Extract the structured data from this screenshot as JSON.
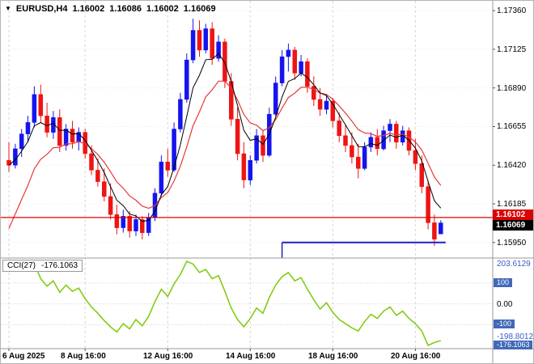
{
  "header": {
    "symbol": "EURUSD,H4",
    "open": "1.16002",
    "high": "1.16086",
    "low": "1.16002",
    "close": "1.16069"
  },
  "colors": {
    "bull": "#1414ee",
    "bear": "#ee1414",
    "ma_fast": "#000000",
    "ma_slow": "#e83838",
    "cci_line": "#84cc14",
    "red_level": "#dd0000",
    "blue_level": "#2020c0",
    "grid": "#d6d6d6",
    "badge_blue": "#4169b8",
    "bid_badge": "#000000"
  },
  "chart_data": [
    {
      "type": "candlestick",
      "title": "EURUSD H4",
      "ylim": [
        1.159,
        1.174
      ],
      "y_ticks": [
        {
          "value": 1.1736,
          "text": "1.17360"
        },
        {
          "value": 1.17125,
          "text": "1.17125"
        },
        {
          "value": 1.1689,
          "text": "1.16890"
        },
        {
          "value": 1.16655,
          "text": "1.16655"
        },
        {
          "value": 1.1642,
          "text": "1.16420"
        },
        {
          "value": 1.16185,
          "text": "1.16185"
        },
        {
          "value": 1.1595,
          "text": "1.15950"
        }
      ],
      "x_labels": [
        {
          "index": 0,
          "text": "6 Aug 2025"
        },
        {
          "index": 12,
          "text": "8 Aug 16:00"
        },
        {
          "index": 25,
          "text": "12 Aug 16:00"
        },
        {
          "index": 38,
          "text": "14 Aug 16:00"
        },
        {
          "index": 51,
          "text": "18 Aug 16:00"
        },
        {
          "index": 64,
          "text": "20 Aug 16:00"
        }
      ],
      "candles": [
        [
          1.1645,
          1.1656,
          1.1638,
          1.1642
        ],
        [
          1.1642,
          1.1655,
          1.164,
          1.1652
        ],
        [
          1.1652,
          1.1664,
          1.1647,
          1.1661
        ],
        [
          1.1661,
          1.1672,
          1.1656,
          1.1668
        ],
        [
          1.1668,
          1.169,
          1.1665,
          1.1685
        ],
        [
          1.1685,
          1.1691,
          1.1668,
          1.1672
        ],
        [
          1.1672,
          1.168,
          1.1659,
          1.1662
        ],
        [
          1.1662,
          1.1675,
          1.1658,
          1.1671
        ],
        [
          1.1671,
          1.1676,
          1.165,
          1.1654
        ],
        [
          1.1654,
          1.1667,
          1.1651,
          1.1664
        ],
        [
          1.1664,
          1.1669,
          1.1652,
          1.1656
        ],
        [
          1.1656,
          1.1665,
          1.1651,
          1.1662
        ],
        [
          1.1662,
          1.1664,
          1.1646,
          1.1649
        ],
        [
          1.1649,
          1.1654,
          1.1636,
          1.1639
        ],
        [
          1.1639,
          1.1646,
          1.1629,
          1.1632
        ],
        [
          1.1632,
          1.164,
          1.162,
          1.1623
        ],
        [
          1.1623,
          1.1631,
          1.1609,
          1.1612
        ],
        [
          1.1612,
          1.1618,
          1.16,
          1.1604
        ],
        [
          1.1604,
          1.1615,
          1.1601,
          1.1611
        ],
        [
          1.1611,
          1.1614,
          1.1598,
          1.1602
        ],
        [
          1.1602,
          1.1612,
          1.1599,
          1.1609
        ],
        [
          1.1609,
          1.1611,
          1.1597,
          1.1601
        ],
        [
          1.1601,
          1.1613,
          1.1599,
          1.161
        ],
        [
          1.161,
          1.1628,
          1.1608,
          1.1625
        ],
        [
          1.1625,
          1.1648,
          1.1623,
          1.1644
        ],
        [
          1.1644,
          1.1652,
          1.1635,
          1.1639
        ],
        [
          1.1639,
          1.1668,
          1.1638,
          1.1664
        ],
        [
          1.1664,
          1.1686,
          1.1662,
          1.1682
        ],
        [
          1.1682,
          1.171,
          1.168,
          1.1706
        ],
        [
          1.1706,
          1.1731,
          1.1704,
          1.1724
        ],
        [
          1.1724,
          1.173,
          1.1708,
          1.1712
        ],
        [
          1.1712,
          1.1728,
          1.171,
          1.1725
        ],
        [
          1.1725,
          1.1729,
          1.1703,
          1.1707
        ],
        [
          1.1707,
          1.1721,
          1.1705,
          1.1717
        ],
        [
          1.1717,
          1.1719,
          1.1689,
          1.1693
        ],
        [
          1.1693,
          1.1698,
          1.1666,
          1.167
        ],
        [
          1.167,
          1.1677,
          1.1645,
          1.1649
        ],
        [
          1.1649,
          1.1656,
          1.1628,
          1.1633
        ],
        [
          1.1633,
          1.1648,
          1.163,
          1.1645
        ],
        [
          1.1645,
          1.1664,
          1.1643,
          1.166
        ],
        [
          1.166,
          1.1663,
          1.1644,
          1.1648
        ],
        [
          1.1648,
          1.1677,
          1.1647,
          1.1673
        ],
        [
          1.1673,
          1.1696,
          1.1672,
          1.1692
        ],
        [
          1.1692,
          1.1712,
          1.169,
          1.1708
        ],
        [
          1.1708,
          1.1716,
          1.1699,
          1.1712
        ],
        [
          1.1712,
          1.1714,
          1.1694,
          1.1698
        ],
        [
          1.1698,
          1.1709,
          1.1696,
          1.1705
        ],
        [
          1.1705,
          1.1707,
          1.1686,
          1.169
        ],
        [
          1.169,
          1.1696,
          1.1678,
          1.1682
        ],
        [
          1.1682,
          1.1689,
          1.1672,
          1.1676
        ],
        [
          1.1676,
          1.1685,
          1.1673,
          1.1681
        ],
        [
          1.1681,
          1.1683,
          1.1665,
          1.1669
        ],
        [
          1.1669,
          1.1674,
          1.1656,
          1.166
        ],
        [
          1.166,
          1.1667,
          1.165,
          1.1654
        ],
        [
          1.1654,
          1.1662,
          1.1643,
          1.1647
        ],
        [
          1.1647,
          1.1655,
          1.1634,
          1.164
        ],
        [
          1.164,
          1.1656,
          1.1639,
          1.1653
        ],
        [
          1.1653,
          1.1662,
          1.165,
          1.1659
        ],
        [
          1.1659,
          1.1664,
          1.1648,
          1.1652
        ],
        [
          1.1652,
          1.1666,
          1.1651,
          1.1663
        ],
        [
          1.1663,
          1.167,
          1.1656,
          1.1667
        ],
        [
          1.1667,
          1.1669,
          1.1652,
          1.1656
        ],
        [
          1.1656,
          1.1666,
          1.1654,
          1.1663
        ],
        [
          1.1663,
          1.1665,
          1.1648,
          1.1651
        ],
        [
          1.1651,
          1.1658,
          1.1639,
          1.1643
        ],
        [
          1.1643,
          1.1648,
          1.1625,
          1.1629
        ],
        [
          1.1629,
          1.1633,
          1.1603,
          1.1607
        ],
        [
          1.1607,
          1.1612,
          1.1593,
          1.1597
        ],
        [
          1.16002,
          1.16086,
          1.16002,
          1.16069
        ]
      ],
      "overlays": {
        "ma_fast": {
          "period": 5
        },
        "ma_slow": {
          "period": 10,
          "seed": 1.1595
        },
        "red_hline": {
          "price": 1.16102,
          "label": "1.16102"
        },
        "blue_segment": {
          "price": 1.1595,
          "from_index": 43
        },
        "bid": {
          "price": 1.16069,
          "label": "1.16069"
        }
      }
    },
    {
      "type": "line",
      "name": "CCI(27)",
      "current_value": "-176.1063",
      "ylim": [
        -198.8012,
        203.6129
      ],
      "levels": [
        100,
        0,
        -100
      ],
      "y_ticks": [
        {
          "value": 203.6129,
          "text": "203.6129",
          "style": "minmax"
        },
        {
          "value": 100,
          "text": "100",
          "style": "badge"
        },
        {
          "value": 0,
          "text": "0.00",
          "style": "plain"
        },
        {
          "value": -100,
          "text": "-100",
          "style": "badge"
        },
        {
          "value": -198.8012,
          "text": "-198.8012",
          "style": "minmax"
        },
        {
          "value": -176.1063,
          "text": "-176.1063",
          "style": "current"
        }
      ],
      "values": [
        155,
        168,
        175,
        188,
        195,
        120,
        85,
        110,
        55,
        90,
        60,
        75,
        25,
        -15,
        -45,
        -80,
        -110,
        -135,
        -95,
        -120,
        -75,
        -105,
        -60,
        10,
        70,
        35,
        95,
        140,
        203.6129,
        190,
        150,
        165,
        120,
        135,
        60,
        -20,
        -75,
        -110,
        -70,
        -20,
        -45,
        30,
        90,
        130,
        150,
        110,
        125,
        70,
        20,
        -25,
        5,
        -40,
        -75,
        -95,
        -115,
        -130,
        -85,
        -50,
        -70,
        -35,
        -15,
        -55,
        -35,
        -70,
        -95,
        -130,
        -198.8012,
        -185,
        -176.1063
      ]
    }
  ]
}
